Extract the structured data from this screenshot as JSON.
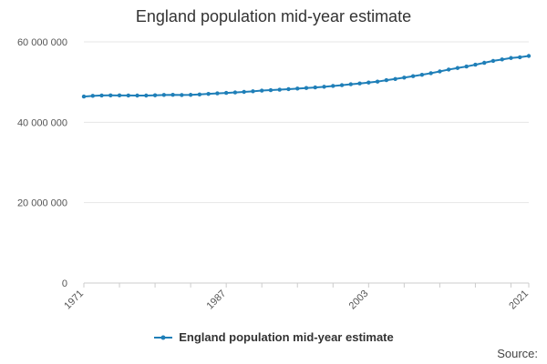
{
  "colors": {
    "series": "#1f7fb8",
    "grid": "#e6e6e6",
    "axis": "#cccccc"
  },
  "footer": {
    "source_label": "Source:"
  },
  "chart_data": {
    "type": "line",
    "title": "England population mid-year estimate",
    "xlabel": "",
    "ylabel": "",
    "xlim": [
      1971,
      2021
    ],
    "ylim": [
      0,
      60000000
    ],
    "y_ticks": [
      {
        "value": 0,
        "label": "0"
      },
      {
        "value": 20000000,
        "label": "20 000 000"
      },
      {
        "value": 40000000,
        "label": "40 000 000"
      },
      {
        "value": 60000000,
        "label": "60 000 000"
      }
    ],
    "x_ticks": [
      {
        "value": 1971,
        "label": "1971"
      },
      {
        "value": 1987,
        "label": "1987"
      },
      {
        "value": 2003,
        "label": "2003"
      },
      {
        "value": 2021,
        "label": "2021"
      }
    ],
    "legend": "bottom-center",
    "series": [
      {
        "name": "England population mid-year estimate",
        "x": [
          1971,
          1972,
          1973,
          1974,
          1975,
          1976,
          1977,
          1978,
          1979,
          1980,
          1981,
          1982,
          1983,
          1984,
          1985,
          1986,
          1987,
          1988,
          1989,
          1990,
          1991,
          1992,
          1993,
          1994,
          1995,
          1996,
          1997,
          1998,
          1999,
          2000,
          2001,
          2002,
          2003,
          2004,
          2005,
          2006,
          2007,
          2008,
          2009,
          2010,
          2011,
          2012,
          2013,
          2014,
          2015,
          2016,
          2017,
          2018,
          2019,
          2020,
          2021
        ],
        "values": [
          46400000,
          46570000,
          46660000,
          46690000,
          46680000,
          46660000,
          46640000,
          46640000,
          46700000,
          46790000,
          46820000,
          46780000,
          46810000,
          46910000,
          47060000,
          47190000,
          47300000,
          47410000,
          47550000,
          47700000,
          47880000,
          47990000,
          48100000,
          48230000,
          48380000,
          48520000,
          48660000,
          48820000,
          49030000,
          49230000,
          49450000,
          49650000,
          49870000,
          50110000,
          50470000,
          50770000,
          51110000,
          51460000,
          51810000,
          52200000,
          52640000,
          53110000,
          53490000,
          53870000,
          54320000,
          54790000,
          55270000,
          55620000,
          55980000,
          56170000,
          56490000
        ]
      }
    ]
  }
}
